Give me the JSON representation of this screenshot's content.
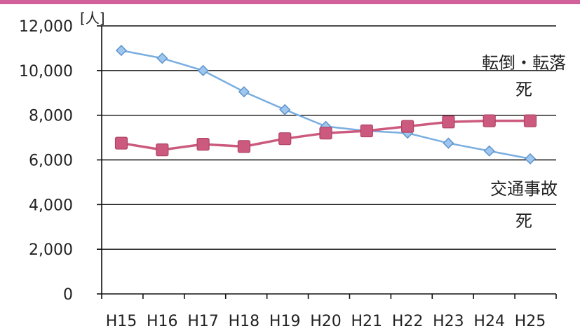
{
  "chart_data": {
    "type": "line",
    "ylabel": "[人]",
    "ylim": [
      0,
      12000
    ],
    "yticks": [
      "0",
      "2,000",
      "4,000",
      "6,000",
      "8,000",
      "10,000",
      "12,000"
    ],
    "ytick_values": [
      0,
      2000,
      4000,
      6000,
      8000,
      10000,
      12000
    ],
    "categories": [
      "H15",
      "H16",
      "H17",
      "H18",
      "H19",
      "H20",
      "H21",
      "H22",
      "H23",
      "H24",
      "H25"
    ],
    "grid": true,
    "series": [
      {
        "name": "転倒・転落死",
        "name_lines": [
          "転倒・転落",
          "死"
        ],
        "color": "#7aaee0",
        "marker": "diamond",
        "values": [
          10900,
          10550,
          10000,
          9050,
          8250,
          7500,
          7300,
          7200,
          6750,
          6400,
          6050
        ]
      },
      {
        "name": "交通事故死",
        "name_lines": [
          "交通事故",
          "死"
        ],
        "color": "#cc5a7e",
        "marker": "square",
        "values": [
          6750,
          6450,
          6700,
          6600,
          6950,
          7200,
          7300,
          7500,
          7700,
          7750,
          7750
        ]
      }
    ]
  },
  "decor": {
    "top_border_color": "#d2609a"
  }
}
